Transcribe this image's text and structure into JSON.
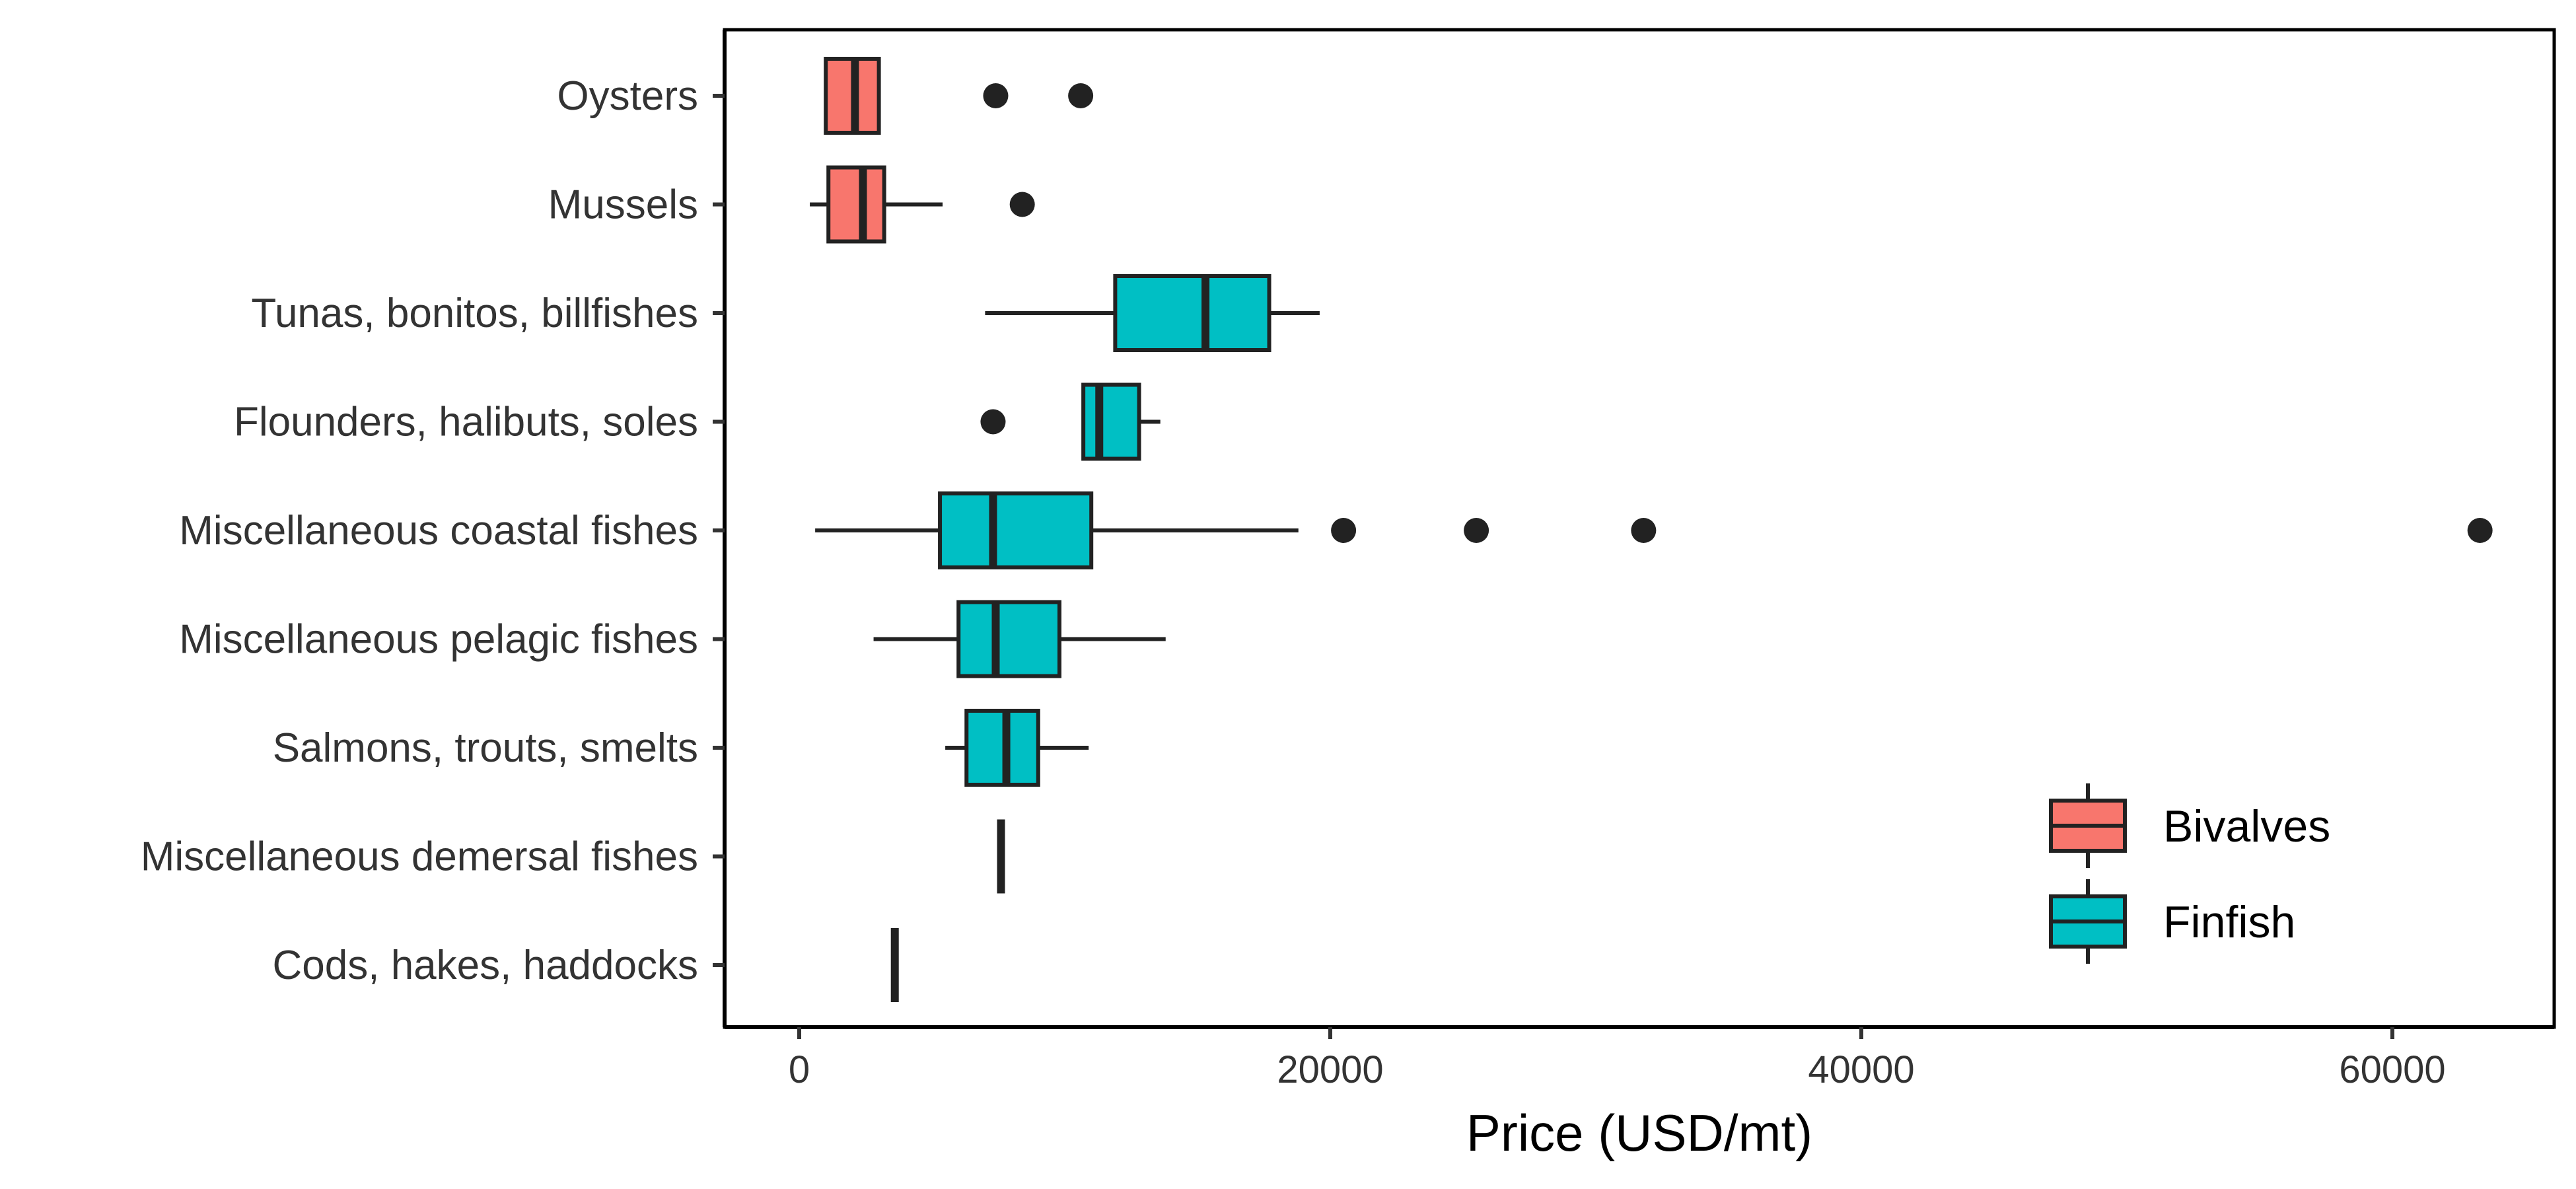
{
  "chart_data": {
    "type": "boxplot",
    "orientation": "horizontal",
    "title": "",
    "xlabel": "Price (USD/mt)",
    "ylabel": "",
    "xlim": [
      -2800,
      66000
    ],
    "xticks": [
      0,
      20000,
      40000,
      60000
    ],
    "grid": false,
    "legend_position": "bottom-right",
    "series": [
      {
        "name": "Bivalves",
        "color": "#F8766D"
      },
      {
        "name": "Finfish",
        "color": "#00BFC4"
      }
    ],
    "categories": [
      "Oysters",
      "Mussels",
      "Tunas, bonitos, billfishes",
      "Flounders, halibuts, soles",
      "Miscellaneous coastal fishes",
      "Miscellaneous pelagic fishes",
      "Salmons, trouts, smelts",
      "Miscellaneous demersal fishes",
      "Cods, hakes, haddocks"
    ],
    "boxes": [
      {
        "category": "Oysters",
        "group": "Bivalves",
        "whisker_low": 1000,
        "q1": 1000,
        "median": 2100,
        "q3": 3000,
        "whisker_high": 3000,
        "outliers": [
          7400,
          10600
        ]
      },
      {
        "category": "Mussels",
        "group": "Bivalves",
        "whisker_low": 400,
        "q1": 1100,
        "median": 2400,
        "q3": 3200,
        "whisker_high": 5400,
        "outliers": [
          8400
        ]
      },
      {
        "category": "Tunas, bonitos, billfishes",
        "group": "Finfish",
        "whisker_low": 7000,
        "q1": 11900,
        "median": 15300,
        "q3": 17700,
        "whisker_high": 19600,
        "outliers": []
      },
      {
        "category": "Flounders, halibuts, soles",
        "group": "Finfish",
        "whisker_low": 10700,
        "q1": 10700,
        "median": 11300,
        "q3": 12800,
        "whisker_high": 13600,
        "outliers": [
          7300
        ]
      },
      {
        "category": "Miscellaneous coastal fishes",
        "group": "Finfish",
        "whisker_low": 600,
        "q1": 5300,
        "median": 7300,
        "q3": 11000,
        "whisker_high": 18800,
        "outliers": [
          20500,
          25500,
          31800,
          63300
        ]
      },
      {
        "category": "Miscellaneous pelagic fishes",
        "group": "Finfish",
        "whisker_low": 2800,
        "q1": 6000,
        "median": 7400,
        "q3": 9800,
        "whisker_high": 13800,
        "outliers": []
      },
      {
        "category": "Salmons, trouts, smelts",
        "group": "Finfish",
        "whisker_low": 5500,
        "q1": 6300,
        "median": 7800,
        "q3": 9000,
        "whisker_high": 10900,
        "outliers": []
      },
      {
        "category": "Miscellaneous demersal fishes",
        "group": "Finfish",
        "whisker_low": 7600,
        "q1": 7600,
        "median": 7600,
        "q3": 7600,
        "whisker_high": 7600,
        "outliers": []
      },
      {
        "category": "Cods, hakes, haddocks",
        "group": "Finfish",
        "whisker_low": 3600,
        "q1": 3600,
        "median": 3600,
        "q3": 3600,
        "whisker_high": 3600,
        "outliers": []
      }
    ]
  }
}
